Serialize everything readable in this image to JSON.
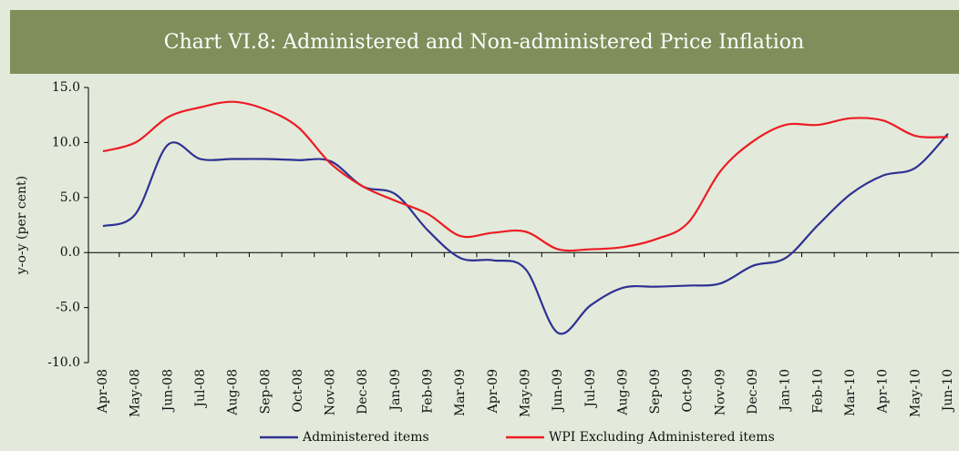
{
  "chart_data": {
    "type": "line",
    "title": "Chart VI.8: Administered and Non-administered Price Inflation",
    "y_label": "y-o-y (per cent)",
    "categories": [
      "Apr-08",
      "May-08",
      "Jun-08",
      "Jul-08",
      "Aug-08",
      "Sep-08",
      "Oct-08",
      "Nov-08",
      "Dec-08",
      "Jan-09",
      "Feb-09",
      "Mar-09",
      "Apr-09",
      "May-09",
      "Jun-09",
      "Jul-09",
      "Aug-09",
      "Sep-09",
      "Oct-09",
      "Nov-09",
      "Dec-09",
      "Jan-10",
      "Feb-10",
      "Mar-10",
      "Apr-10",
      "May-10",
      "Jun-10"
    ],
    "series": [
      {
        "name": "Administered items",
        "color": "#2e3192",
        "values": [
          2.4,
          3.5,
          9.8,
          8.5,
          8.5,
          8.5,
          8.4,
          8.3,
          6.0,
          5.3,
          2.0,
          -0.5,
          -0.7,
          -1.5,
          -7.3,
          -4.8,
          -3.2,
          -3.1,
          -3.0,
          -2.8,
          -1.2,
          -0.5,
          2.5,
          5.3,
          7.0,
          7.7,
          10.8
        ]
      },
      {
        "name": "WPI Excluding Administered items",
        "color": "#ed1c24",
        "values": [
          9.2,
          10.0,
          12.3,
          13.2,
          13.7,
          13.0,
          11.4,
          8.1,
          6.0,
          4.7,
          3.5,
          1.5,
          1.8,
          1.9,
          0.3,
          0.3,
          0.5,
          1.2,
          2.7,
          7.4,
          10.1,
          11.6,
          11.6,
          12.2,
          12.0,
          10.6,
          10.5
        ]
      }
    ],
    "ylim": [
      -10,
      15
    ],
    "yticks": [
      {
        "value": -10,
        "label": "-10.0"
      },
      {
        "value": -5,
        "label": "-5.0"
      },
      {
        "value": 0,
        "label": "0.0"
      },
      {
        "value": 5,
        "label": "5.0"
      },
      {
        "value": 10,
        "label": "10.0"
      },
      {
        "value": 15,
        "label": "15.0"
      }
    ],
    "legend": "bottom"
  }
}
